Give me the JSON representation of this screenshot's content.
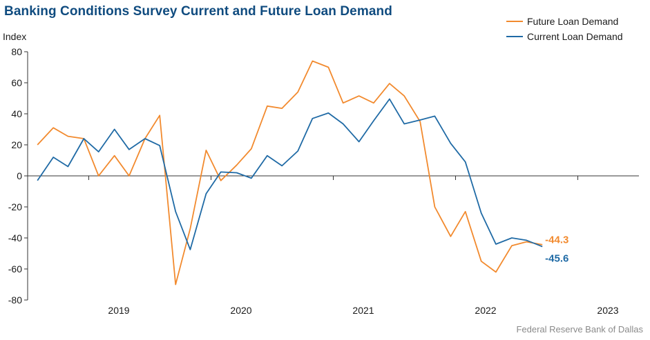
{
  "chart_data": {
    "type": "line",
    "title": "Banking Conditions Survey Current and Future Loan Demand",
    "ylabel": "Index",
    "xlabel": "",
    "source": "Federal Reserve Bank of Dallas",
    "ylim": [
      -80,
      80
    ],
    "yticks": [
      80,
      60,
      40,
      20,
      0,
      -20,
      -40,
      -60,
      -80
    ],
    "xlim": [
      2018.5,
      2023.5
    ],
    "year_labels": [
      "2019",
      "2020",
      "2021",
      "2022",
      "2023"
    ],
    "x": [
      2018.58,
      2018.71,
      2018.83,
      2018.96,
      2019.08,
      2019.21,
      2019.33,
      2019.46,
      2019.58,
      2019.71,
      2019.83,
      2019.96,
      2020.08,
      2020.21,
      2020.33,
      2020.46,
      2020.58,
      2020.71,
      2020.83,
      2020.96,
      2021.08,
      2021.21,
      2021.33,
      2021.46,
      2021.58,
      2021.71,
      2021.83,
      2021.96,
      2022.08,
      2022.21,
      2022.33,
      2022.46,
      2022.58,
      2022.71
    ],
    "series": [
      {
        "name": "Future Loan Demand",
        "color": "#f28a2e",
        "values": [
          20,
          31,
          25.5,
          24,
          0,
          13,
          0,
          24,
          39,
          -70,
          -34,
          16.5,
          -3,
          7,
          17.5,
          45,
          43.5,
          54,
          74,
          70,
          47,
          51.5,
          47,
          59.5,
          51.5,
          35,
          -20,
          -39,
          -23,
          -55,
          -62,
          -45,
          -42.5,
          -44.3
        ],
        "end_label": "-44.3"
      },
      {
        "name": "Current Loan Demand",
        "color": "#1f6aa5",
        "values": [
          -3,
          12,
          6,
          24,
          15.5,
          30,
          17,
          24,
          19.5,
          -23,
          -47.5,
          -11.5,
          2.5,
          2,
          -1.5,
          13,
          6.5,
          16,
          37,
          40.5,
          33.5,
          22,
          35.5,
          49.5,
          33.5,
          36,
          38.5,
          21,
          9,
          -24,
          -44,
          -40,
          -41.5,
          -45.6
        ],
        "end_label": "-45.6"
      }
    ],
    "legend": "top-right",
    "grid": false
  }
}
